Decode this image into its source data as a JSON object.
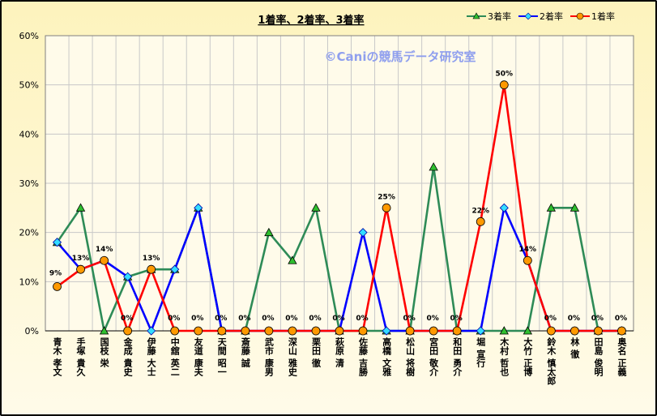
{
  "chart_data": {
    "type": "line",
    "title": "1着率、2着率、3着率",
    "watermark": "©Caniの競馬データ研究室",
    "categories": [
      "青木 孝文",
      "手塚 貴久",
      "国枝 栄",
      "金成 貴史",
      "伊藤 大士",
      "中舘 英二",
      "友道 康夫",
      "天間 昭一",
      "斎藤 誠",
      "武市 康男",
      "深山 雅史",
      "栗田 徹",
      "萩原 清",
      "佐藤 吉勝",
      "高橋 文雅",
      "松山 将樹",
      "宮田 敬介",
      "和田 勇介",
      "堀 宣行",
      "木村 哲也",
      "大竹 正博",
      "鈴木 慎太郎",
      "林 徹",
      "田島 俊明",
      "奥名 正義"
    ],
    "ylim": [
      0,
      60
    ],
    "yticks": [
      "0%",
      "10%",
      "20%",
      "30%",
      "40%",
      "50%",
      "60%"
    ],
    "grid": true,
    "legend_position": "top-right",
    "series": [
      {
        "name": "3着率",
        "color": "#2e8b57",
        "marker": "triangle",
        "marker_color": "#2fbf2f",
        "values": [
          18,
          25,
          0,
          11,
          12.5,
          12.5,
          25,
          0,
          0,
          20,
          14.3,
          25,
          0,
          0,
          0,
          0,
          33.3,
          0,
          0,
          0,
          0,
          25,
          25,
          0,
          0
        ]
      },
      {
        "name": "2着率",
        "color": "#0000ff",
        "marker": "diamond",
        "marker_color": "#33ddff",
        "values": [
          18,
          12.5,
          14.3,
          11,
          0,
          12.5,
          25,
          0,
          0,
          0,
          0,
          0,
          0,
          20,
          0,
          0,
          0,
          0,
          0,
          25,
          14.3,
          0,
          0,
          0,
          0
        ]
      },
      {
        "name": "1着率",
        "color": "#ff0000",
        "marker": "circle",
        "marker_color": "#ff9900",
        "values": [
          9,
          12.5,
          14.3,
          0,
          12.5,
          0,
          0,
          0,
          0,
          0,
          0,
          0,
          0,
          0,
          25,
          0,
          0,
          0,
          22.2,
          50,
          14.3,
          0,
          0,
          0,
          0
        ]
      }
    ],
    "data_labels": [
      "9%",
      "13%",
      "14%",
      "0%",
      "13%",
      "0%",
      "0%",
      "0%",
      "0%",
      "0%",
      "0%",
      "0%",
      "0%",
      "0%",
      "25%",
      "0%",
      "0%",
      "0%",
      "22%",
      "50%",
      "14%",
      "0%",
      "0%",
      "0%",
      "0%"
    ]
  }
}
